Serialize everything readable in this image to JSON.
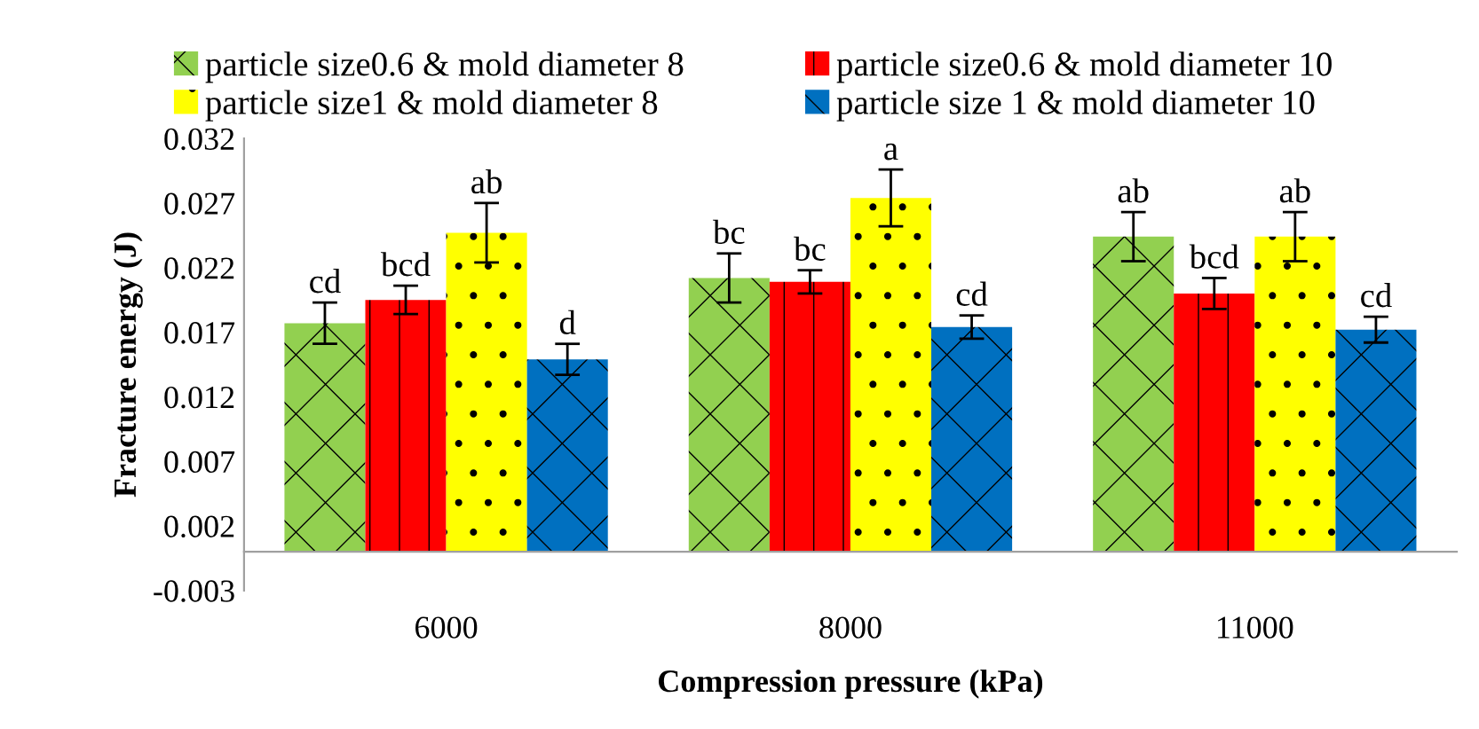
{
  "chart_data": {
    "type": "bar",
    "xlabel": "Compression pressure (kPa)",
    "ylabel": "Fracture energy (J)",
    "categories": [
      "6000",
      "8000",
      "11000"
    ],
    "series": [
      {
        "name": "particle size0.6 & mold diameter 8",
        "color": "#92d050",
        "values": [
          0.0177,
          0.0212,
          0.0244
        ],
        "errors": [
          0.0016,
          0.0019,
          0.0019
        ]
      },
      {
        "name": "particle size0.6 & mold diameter 10",
        "color": "#ff0000",
        "values": [
          0.0195,
          0.0209,
          0.02
        ],
        "errors": [
          0.0011,
          0.0009,
          0.0012
        ]
      },
      {
        "name": "particle size1 & mold diameter 8",
        "color": "#ffff00",
        "values": [
          0.0247,
          0.0274,
          0.0244
        ],
        "errors": [
          0.0023,
          0.0022,
          0.0019
        ]
      },
      {
        "name": "particle size 1 & mold diameter 10",
        "color": "#0070c0",
        "values": [
          0.0149,
          0.0174,
          0.0172
        ],
        "errors": [
          0.0012,
          0.0009,
          0.001
        ]
      }
    ],
    "ylim": [
      -0.003,
      0.032
    ],
    "yticks": [
      -0.003,
      0.002,
      0.007,
      0.012,
      0.017,
      0.022,
      0.027,
      0.032
    ],
    "grid": false,
    "legend": "top",
    "annotations": [
      "cd",
      "bcd",
      "ab",
      "d",
      "bc",
      "bc",
      "a",
      "cd",
      "ab",
      "bcd",
      "ab",
      "cd"
    ]
  }
}
